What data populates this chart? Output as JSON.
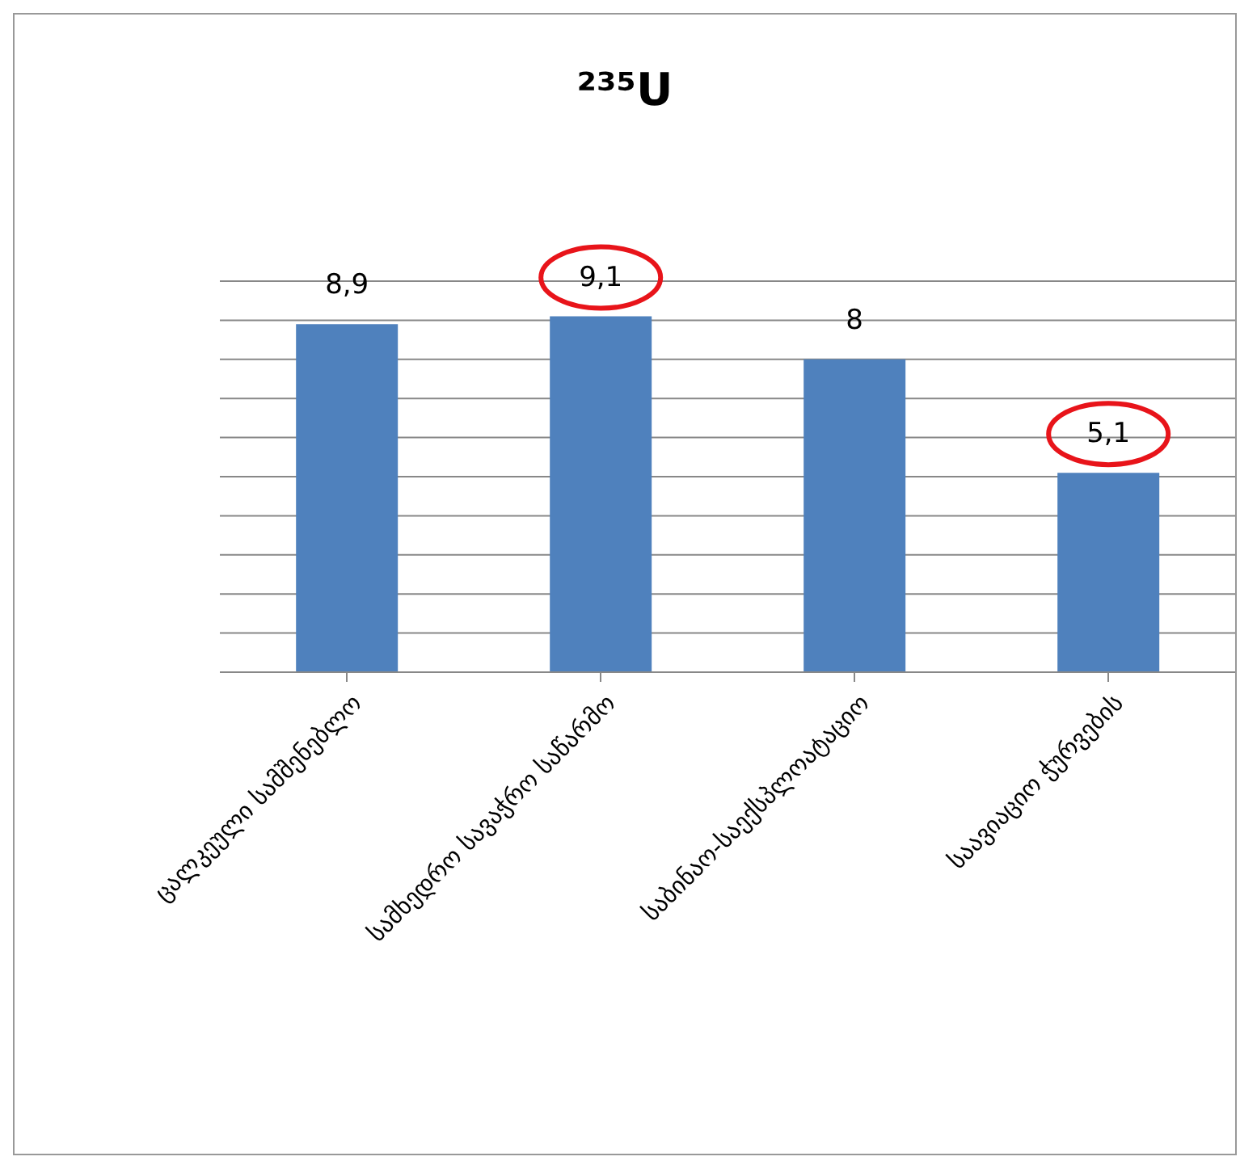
{
  "chart_data": {
    "type": "bar",
    "title": "²³⁵U",
    "categories": [
      "ცალკეული სამშენებლო",
      "სამხედრო სავაჭრო საწარმო",
      "საბინაო-საექსპლოატაციო",
      "საავიაციო ჭურვების"
    ],
    "values": [
      8.9,
      9.1,
      8,
      5.1
    ],
    "value_labels": [
      "8,9",
      "9,1",
      "8",
      "5,1"
    ],
    "color": "#4f81bd",
    "ylim": [
      0,
      10
    ],
    "yticks": [
      {
        "value": 0,
        "label": null
      },
      {
        "value": 1,
        "label": null
      },
      {
        "value": 2,
        "label": null
      },
      {
        "value": 3,
        "label": null
      },
      {
        "value": 4,
        "label": null
      },
      {
        "value": 5,
        "label": null
      },
      {
        "value": 6,
        "label": null
      },
      {
        "value": 7,
        "label": null
      },
      {
        "value": 8,
        "label": null
      },
      {
        "value": 9,
        "label": null
      },
      {
        "value": 10,
        "label": null
      }
    ],
    "grid": "y",
    "tick_labels": "x",
    "legend": false
  }
}
